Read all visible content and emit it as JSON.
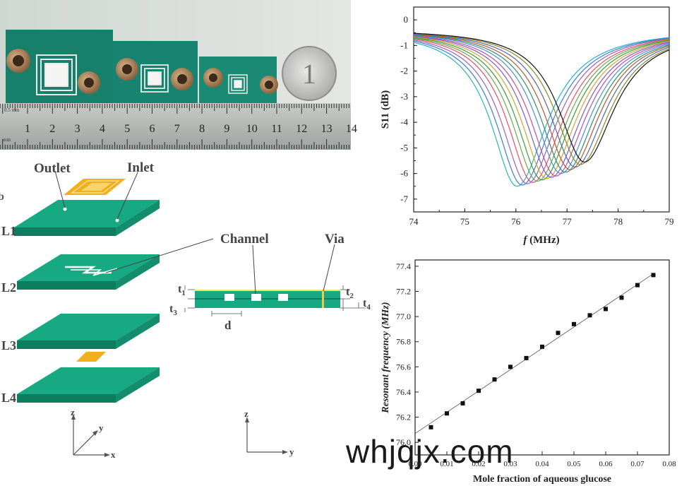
{
  "photo": {
    "ruler_numbers": [
      "1",
      "2",
      "3",
      "4",
      "5",
      "6",
      "7",
      "8",
      "9",
      "10",
      "11",
      "12",
      "13",
      "14"
    ],
    "ruler_small": [
      "0.5 mm",
      "mm"
    ],
    "coin_text": "1"
  },
  "diagram": {
    "label_outlet": "Outlet",
    "label_inlet": "Inlet",
    "label_channel": "Channel",
    "label_via": "Via",
    "label_b": "b",
    "layers": [
      "L1",
      "L2",
      "L3",
      "L4"
    ],
    "dims": {
      "t1": "t",
      "t1_sub": "1",
      "t2": "t",
      "t2_sub": "2",
      "t3": "t",
      "t3_sub": "3",
      "t4": "t",
      "t4_sub": "4",
      "d": "d"
    },
    "axes_left": {
      "z": "z",
      "y": "y",
      "x": "x"
    },
    "axes_right": {
      "z": "z",
      "y": "y"
    }
  },
  "colors": {
    "pcb": "#17a982",
    "pcb_dark": "#0e7d5f",
    "gold": "#f2b01e",
    "line": "#444"
  },
  "chart_data": [
    {
      "type": "line",
      "xlabel_italic": "f",
      "xlabel_rest": " (MHz)",
      "ylabel": "S11 (dB)",
      "xlim": [
        74,
        79
      ],
      "ylim": [
        -7.5,
        0.5
      ],
      "xticks": [
        "74",
        "75",
        "76",
        "77",
        "78",
        "79"
      ],
      "yticks": [
        "0",
        "-1",
        "-2",
        "-3",
        "-4",
        "-5",
        "-6",
        "-7"
      ],
      "series_min_freq": [
        76.02,
        76.12,
        76.22,
        76.33,
        76.42,
        76.51,
        76.6,
        76.69,
        76.78,
        76.88,
        76.97,
        77.06,
        77.16,
        77.26,
        77.34
      ],
      "series_min_db": [
        -6.5,
        -6.45,
        -6.4,
        -6.35,
        -6.3,
        -6.25,
        -6.2,
        -6.15,
        -6.1,
        -6.0,
        -5.95,
        -5.85,
        -5.75,
        -5.65,
        -5.55
      ],
      "series_colors": [
        "#27b3c6",
        "#3c7fd0",
        "#9a63b6",
        "#e2506a",
        "#6aa84f",
        "#3c9a3c",
        "#d9a030",
        "#7a5ac8",
        "#c04fa0",
        "#4a90d9",
        "#2f8f6f",
        "#b05a30",
        "#5566aa",
        "#8a8a2a",
        "#111111"
      ]
    },
    {
      "type": "scatter",
      "xlabel": "Mole fraction of aqueous glucose",
      "ylabel": "Resonant frequency (MHz)",
      "xlim": [
        0.0,
        0.08
      ],
      "ylim": [
        75.9,
        77.45
      ],
      "xticks": [
        "0.00",
        "0.01",
        "0.02",
        "0.03",
        "0.04",
        "0.05",
        "0.06",
        "0.07",
        "0.08"
      ],
      "yticks": [
        "76.0",
        "76.2",
        "76.4",
        "76.6",
        "76.8",
        "77.0",
        "77.2",
        "77.4"
      ],
      "x": [
        0.005,
        0.01,
        0.015,
        0.02,
        0.025,
        0.03,
        0.035,
        0.04,
        0.045,
        0.05,
        0.055,
        0.06,
        0.065,
        0.07,
        0.075
      ],
      "y": [
        76.12,
        76.23,
        76.31,
        76.41,
        76.5,
        76.6,
        76.67,
        76.76,
        76.87,
        76.94,
        77.01,
        77.06,
        77.15,
        77.25,
        77.33
      ],
      "fit": [
        [
          0.0,
          76.07
        ],
        [
          0.075,
          77.34
        ]
      ]
    }
  ],
  "watermark": "whjqjx.com"
}
